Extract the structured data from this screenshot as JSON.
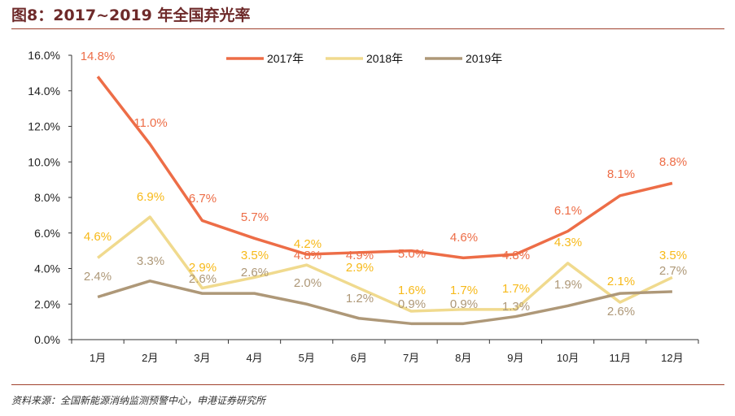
{
  "title": "图8：2017~2019 年全国弃光率",
  "source": "资料来源：全国新能源消纳监测预警中心，申港证券研究所",
  "chart_data": {
    "type": "line",
    "categories": [
      "1月",
      "2月",
      "3月",
      "4月",
      "5月",
      "6月",
      "7月",
      "8月",
      "9月",
      "10月",
      "11月",
      "12月"
    ],
    "ylim": [
      0,
      16
    ],
    "yticks": [
      "0.0%",
      "2.0%",
      "4.0%",
      "6.0%",
      "8.0%",
      "10.0%",
      "12.0%",
      "14.0%",
      "16.0%"
    ],
    "grid": false,
    "legend_placement": "top",
    "series": [
      {
        "name": "2017年",
        "color": "#ed6d47",
        "label_color": "#ed6d47",
        "values": [
          14.8,
          11.0,
          6.7,
          5.7,
          4.8,
          4.9,
          5.0,
          4.6,
          4.8,
          6.1,
          8.1,
          8.8
        ]
      },
      {
        "name": "2018年",
        "color": "#f0da8e",
        "label_color": "#f7b919",
        "values": [
          4.6,
          6.9,
          2.9,
          3.5,
          4.2,
          2.9,
          1.6,
          1.7,
          1.7,
          4.3,
          2.1,
          3.5
        ]
      },
      {
        "name": "2019年",
        "color": "#ae9878",
        "label_color": "#ae9878",
        "values": [
          2.4,
          3.3,
          2.6,
          2.6,
          2.0,
          1.2,
          0.9,
          0.9,
          1.3,
          1.9,
          2.6,
          2.7
        ]
      }
    ]
  }
}
